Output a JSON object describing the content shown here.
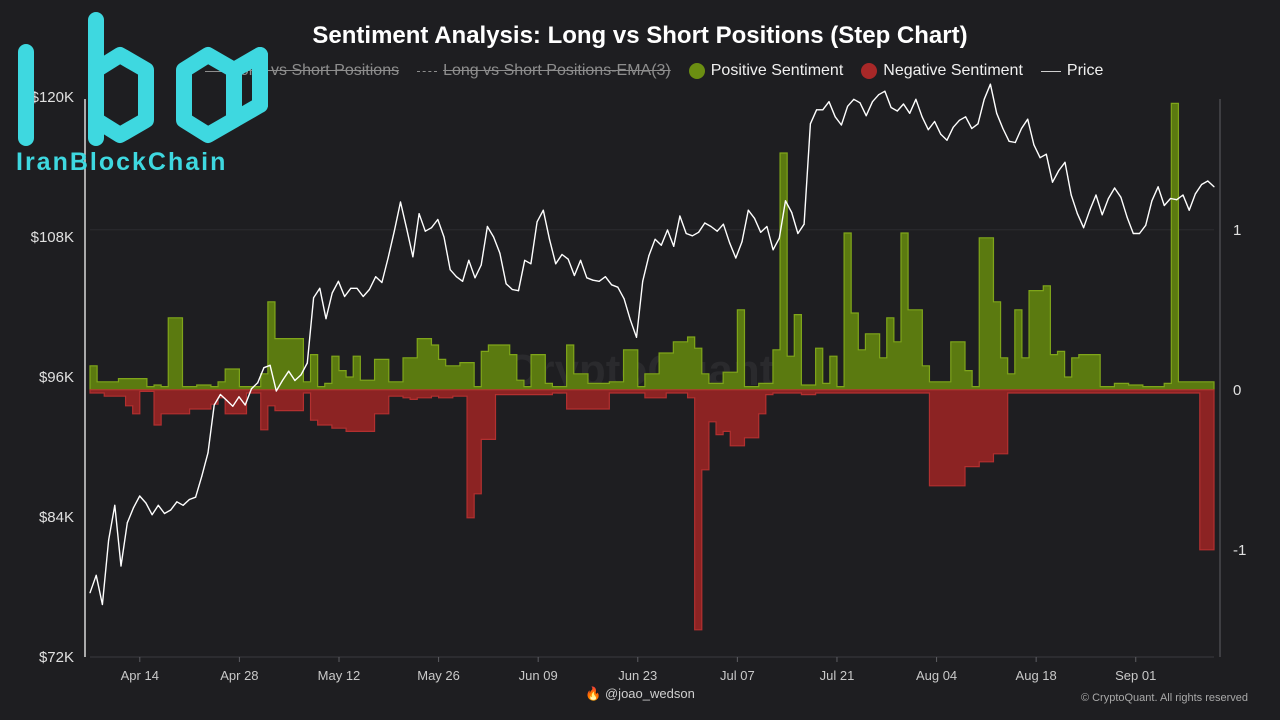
{
  "chart_data": {
    "type": "step",
    "title": "Sentiment Analysis: Long vs Short Positions (Step Chart)",
    "legend": [
      {
        "name": "Long vs Short Positions",
        "kind": "line",
        "hidden": true
      },
      {
        "name": "Long vs Short Positions-EMA(3)",
        "kind": "dashed-line",
        "hidden": true
      },
      {
        "name": "Positive Sentiment",
        "kind": "dot",
        "color": "#6b8e12"
      },
      {
        "name": "Negative Sentiment",
        "kind": "dot",
        "color": "#a82828"
      },
      {
        "name": "Price",
        "kind": "line",
        "color": "#ffffff"
      }
    ],
    "xlim": [
      0,
      158
    ],
    "x_ticks": [
      {
        "label": "Apr 14",
        "day": 7
      },
      {
        "label": "Apr 28",
        "day": 21
      },
      {
        "label": "May 12",
        "day": 35
      },
      {
        "label": "May 26",
        "day": 49
      },
      {
        "label": "Jun 09",
        "day": 63
      },
      {
        "label": "Jun 23",
        "day": 77
      },
      {
        "label": "Jul 07",
        "day": 91
      },
      {
        "label": "Jul 21",
        "day": 105
      },
      {
        "label": "Aug 04",
        "day": 119
      },
      {
        "label": "Aug 18",
        "day": 133
      },
      {
        "label": "Sep 01",
        "day": 147
      }
    ],
    "y_left": {
      "min": 72000,
      "max": 120000,
      "ticks": [
        {
          "label": "$72K",
          "v": 72000
        },
        {
          "label": "$84K",
          "v": 84000
        },
        {
          "label": "$96K",
          "v": 96000
        },
        {
          "label": "$108K",
          "v": 108000
        },
        {
          "label": "$120K",
          "v": 120000
        }
      ]
    },
    "y_right": {
      "min": -1.67,
      "max": 1.83,
      "ticks": [
        {
          "label": "1",
          "v": 1
        },
        {
          "label": "0",
          "v": 0
        },
        {
          "label": "-1",
          "v": -1
        }
      ]
    },
    "positive_sentiment": {
      "name": "Positive Sentiment",
      "color": "#6b8e12",
      "days": [
        0,
        1,
        4,
        8,
        9,
        10,
        11,
        13,
        15,
        17,
        18,
        19,
        21,
        24,
        25,
        26,
        30,
        31,
        32,
        33,
        34,
        35,
        36,
        37,
        38,
        40,
        42,
        44,
        46,
        48,
        49,
        50,
        52,
        54,
        55,
        56,
        59,
        60,
        61,
        62,
        64,
        65,
        67,
        68,
        70,
        73,
        75,
        77,
        78,
        80,
        82,
        84,
        85,
        86,
        87,
        89,
        91,
        92,
        94,
        96,
        97,
        98,
        99,
        100,
        102,
        103,
        104,
        105,
        106,
        107,
        108,
        109,
        111,
        112,
        113,
        114,
        115,
        117,
        118,
        119,
        120,
        121,
        123,
        124,
        125,
        127,
        128,
        129,
        130,
        131,
        132,
        134,
        135,
        136,
        137,
        138,
        139,
        142,
        143,
        144,
        146,
        148,
        149,
        150,
        151,
        152,
        153,
        154,
        156,
        158
      ],
      "values": [
        0.15,
        0.05,
        0.07,
        0.02,
        0.03,
        0.02,
        0.45,
        0.02,
        0.03,
        0.02,
        0.05,
        0.13,
        0.02,
        0.1,
        0.55,
        0.32,
        0.05,
        0.22,
        0.02,
        0.04,
        0.21,
        0.12,
        0.08,
        0.21,
        0.06,
        0.19,
        0.05,
        0.2,
        0.32,
        0.28,
        0.19,
        0.15,
        0.17,
        0.02,
        0.24,
        0.28,
        0.22,
        0.06,
        0.02,
        0.22,
        0.04,
        0.02,
        0.28,
        0.1,
        0.04,
        0.05,
        0.25,
        0.02,
        0.1,
        0.23,
        0.3,
        0.33,
        0.26,
        0.1,
        0.04,
        0.11,
        0.5,
        0.02,
        0.04,
        0.25,
        1.48,
        0.21,
        0.47,
        0.03,
        0.26,
        0.04,
        0.21,
        0.02,
        0.98,
        0.48,
        0.25,
        0.35,
        0.2,
        0.45,
        0.3,
        0.98,
        0.5,
        0.15,
        0.05,
        0.05,
        0.05,
        0.3,
        0.12,
        0.02,
        0.95,
        0.55,
        0.2,
        0.1,
        0.5,
        0.2,
        0.62,
        0.65,
        0.22,
        0.24,
        0.08,
        0.2,
        0.22,
        0.02,
        0.02,
        0.04,
        0.03,
        0.02,
        0.02,
        0.02,
        0.04,
        1.79,
        0.05,
        0.05,
        0.05,
        0.05
      ]
    },
    "negative_sentiment": {
      "name": "Negative Sentiment",
      "color": "#a82828",
      "days": [
        0,
        1,
        2,
        5,
        6,
        7,
        9,
        10,
        14,
        17,
        18,
        19,
        22,
        24,
        25,
        26,
        30,
        31,
        32,
        34,
        36,
        40,
        42,
        44,
        45,
        46,
        47,
        48,
        49,
        51,
        53,
        54,
        55,
        57,
        61,
        63,
        65,
        67,
        70,
        73,
        75,
        77,
        78,
        81,
        84,
        85,
        86,
        87,
        88,
        89,
        90,
        92,
        94,
        95,
        96,
        99,
        100,
        102,
        104,
        106,
        109,
        111,
        114,
        115,
        118,
        119,
        121,
        123,
        125,
        127,
        129,
        131,
        134,
        135,
        138,
        140,
        142,
        143,
        147,
        148,
        149,
        150,
        151,
        152,
        156,
        158
      ],
      "values": [
        -0.02,
        -0.02,
        -0.04,
        -0.1,
        -0.15,
        -0.01,
        -0.22,
        -0.15,
        -0.12,
        -0.09,
        -0.05,
        -0.15,
        -0.02,
        -0.25,
        -0.1,
        -0.13,
        -0.02,
        -0.19,
        -0.22,
        -0.24,
        -0.26,
        -0.15,
        -0.04,
        -0.05,
        -0.06,
        -0.05,
        -0.05,
        -0.04,
        -0.05,
        -0.04,
        -0.8,
        -0.65,
        -0.31,
        -0.03,
        -0.03,
        -0.03,
        -0.02,
        -0.12,
        -0.12,
        -0.02,
        -0.02,
        -0.02,
        -0.05,
        -0.02,
        -0.05,
        -1.5,
        -0.5,
        -0.2,
        -0.28,
        -0.26,
        -0.35,
        -0.3,
        -0.15,
        -0.03,
        -0.02,
        -0.02,
        -0.03,
        -0.02,
        -0.02,
        -0.02,
        -0.02,
        -0.02,
        -0.02,
        -0.02,
        -0.6,
        -0.6,
        -0.6,
        -0.48,
        -0.45,
        -0.4,
        -0.02,
        -0.02,
        -0.02,
        -0.02,
        -0.02,
        -0.02,
        -0.02,
        -0.02,
        -0.02,
        -0.02,
        -0.02,
        -0.02,
        -0.02,
        -0.02,
        -1.0,
        -0.13
      ]
    },
    "price": {
      "name": "Price",
      "color": "#ffffff",
      "values": [
        77500,
        79000,
        76500,
        82000,
        85000,
        79800,
        83500,
        84800,
        85800,
        85200,
        84200,
        85000,
        84300,
        84600,
        85300,
        85000,
        85500,
        85700,
        87500,
        89500,
        93600,
        94500,
        94000,
        93500,
        94300,
        93600,
        95000,
        95500,
        96800,
        97000,
        94800,
        95700,
        96500,
        95700,
        96200,
        97200,
        102800,
        103600,
        101000,
        103200,
        104200,
        102900,
        103600,
        103600,
        102900,
        103500,
        104600,
        104100,
        106200,
        108500,
        111000,
        108700,
        106300,
        110000,
        108500,
        108800,
        109500,
        108000,
        105200,
        104600,
        104200,
        106000,
        104500,
        105600,
        108900,
        108000,
        106600,
        104000,
        103500,
        103400,
        106000,
        105700,
        109300,
        110300,
        107800,
        105700,
        106500,
        106100,
        104700,
        106000,
        104500,
        104300,
        104200,
        104600,
        103900,
        103700,
        102700,
        100900,
        99400,
        104200,
        106400,
        107800,
        107300,
        108600,
        107200,
        109800,
        108300,
        108100,
        108400,
        109200,
        108900,
        108500,
        109100,
        107500,
        106200,
        107600,
        110300,
        109600,
        108400,
        108900,
        106900,
        107900,
        111100,
        110100,
        108300,
        109100,
        117700,
        118900,
        118900,
        119600,
        118300,
        117600,
        119200,
        119800,
        119500,
        118400,
        119600,
        120200,
        120500,
        119100,
        118800,
        119400,
        118600,
        119800,
        118300,
        117200,
        117900,
        116800,
        116300,
        117400,
        118000,
        118300,
        117300,
        117700,
        119800,
        121100,
        118600,
        117300,
        116200,
        116100,
        117300,
        118100,
        115900,
        114800,
        115100,
        112700,
        113700,
        114400,
        111600,
        110000,
        108800,
        110300,
        111600,
        109900,
        111300,
        112200,
        111400,
        109700,
        108300,
        108300,
        109000,
        111100,
        112300,
        110700,
        111300,
        111200,
        111600,
        110300,
        111700,
        112500,
        112800,
        112300
      ]
    }
  },
  "branding": {
    "logo_text": "IranBlockChain",
    "watermark": "CryptoQuant",
    "handle": "🔥 @joao_wedson",
    "copyright": "© CryptoQuant. All rights reserved"
  }
}
